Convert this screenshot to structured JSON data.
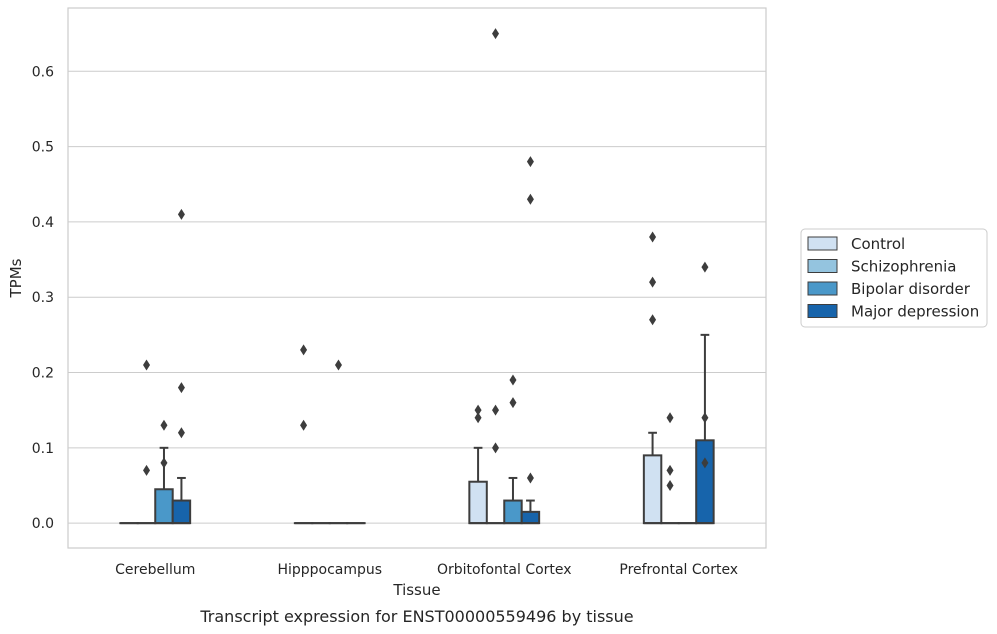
{
  "chart_data": {
    "type": "box",
    "xlabel": "Tissue",
    "ylabel": "TPMs",
    "caption": "Transcript expression for ENST00000559496 by tissue",
    "ylim": [
      -0.033,
      0.684
    ],
    "yticks": [
      0.0,
      0.1,
      0.2,
      0.3,
      0.4,
      0.5,
      0.6
    ],
    "ytick_labels": [
      "0.0",
      "0.1",
      "0.2",
      "0.3",
      "0.4",
      "0.5",
      "0.6"
    ],
    "grid": "horizontal",
    "legend_position": "right",
    "categories": [
      "Cerebellum",
      "Hipppocampus",
      "Orbitofontal Cortex",
      "Prefrontal Cortex"
    ],
    "series": [
      {
        "name": "Control",
        "color": "#d0e1f2",
        "boxes": [
          {
            "q1": 0,
            "median": 0,
            "q3": 0,
            "whisker_high": 0,
            "outliers": []
          },
          {
            "q1": 0,
            "median": 0,
            "q3": 0,
            "whisker_high": 0,
            "outliers": [
              0.13,
              0.23
            ]
          },
          {
            "q1": 0,
            "median": 0,
            "q3": 0.055,
            "whisker_high": 0.1,
            "outliers": [
              0.14,
              0.15
            ]
          },
          {
            "q1": 0,
            "median": 0,
            "q3": 0.09,
            "whisker_high": 0.12,
            "outliers": [
              0.27,
              0.32,
              0.38
            ]
          }
        ]
      },
      {
        "name": "Schizophrenia",
        "color": "#94c4df",
        "boxes": [
          {
            "q1": 0,
            "median": 0,
            "q3": 0,
            "whisker_high": 0,
            "outliers": [
              0.07,
              0.21
            ]
          },
          {
            "q1": 0,
            "median": 0,
            "q3": 0,
            "whisker_high": 0,
            "outliers": []
          },
          {
            "q1": 0,
            "median": 0,
            "q3": 0,
            "whisker_high": 0,
            "outliers": [
              0.1,
              0.15,
              0.65
            ]
          },
          {
            "q1": 0,
            "median": 0,
            "q3": 0,
            "whisker_high": 0,
            "outliers": [
              0.05,
              0.07,
              0.14
            ]
          }
        ]
      },
      {
        "name": "Bipolar disorder",
        "color": "#4a98c9",
        "boxes": [
          {
            "q1": 0,
            "median": 0,
            "q3": 0.045,
            "whisker_high": 0.1,
            "outliers": [
              0.08,
              0.13
            ]
          },
          {
            "q1": 0,
            "median": 0,
            "q3": 0,
            "whisker_high": 0,
            "outliers": [
              0.21
            ]
          },
          {
            "q1": 0,
            "median": 0,
            "q3": 0.03,
            "whisker_high": 0.06,
            "outliers": [
              0.16,
              0.19
            ]
          },
          {
            "q1": 0,
            "median": 0,
            "q3": 0,
            "whisker_high": 0,
            "outliers": []
          }
        ]
      },
      {
        "name": "Major depression",
        "color": "#1764ab",
        "boxes": [
          {
            "q1": 0,
            "median": 0,
            "q3": 0.03,
            "whisker_high": 0.06,
            "outliers": [
              0.12,
              0.18,
              0.41
            ]
          },
          {
            "q1": 0,
            "median": 0,
            "q3": 0,
            "whisker_high": 0,
            "outliers": []
          },
          {
            "q1": 0,
            "median": 0,
            "q3": 0.015,
            "whisker_high": 0.03,
            "outliers": [
              0.06,
              0.43,
              0.48
            ]
          },
          {
            "q1": 0,
            "median": 0,
            "q3": 0.11,
            "whisker_high": 0.25,
            "outliers": [
              0.08,
              0.14,
              0.34
            ]
          }
        ]
      }
    ]
  }
}
